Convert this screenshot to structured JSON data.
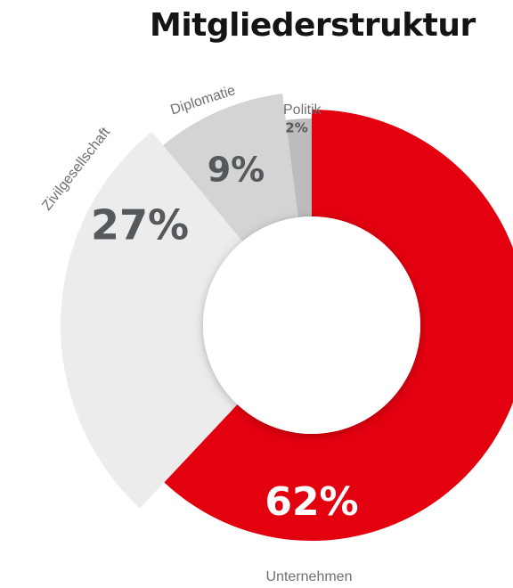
{
  "title": "Mitgliederstruktur",
  "chart_data": {
    "type": "pie",
    "variant": "donut-exploded",
    "title": "Mitgliederstruktur",
    "categories": [
      "Unternehmen",
      "Zivilgesellschaft",
      "Diplomatie",
      "Politik"
    ],
    "values": [
      62,
      27,
      9,
      2
    ],
    "value_labels": [
      "62%",
      "27%",
      "9%",
      "2%"
    ],
    "colors": [
      "#e3000f",
      "#ececec",
      "#d4d4d4",
      "#bcbcbc"
    ],
    "start": "12 o'clock, clockwise"
  }
}
